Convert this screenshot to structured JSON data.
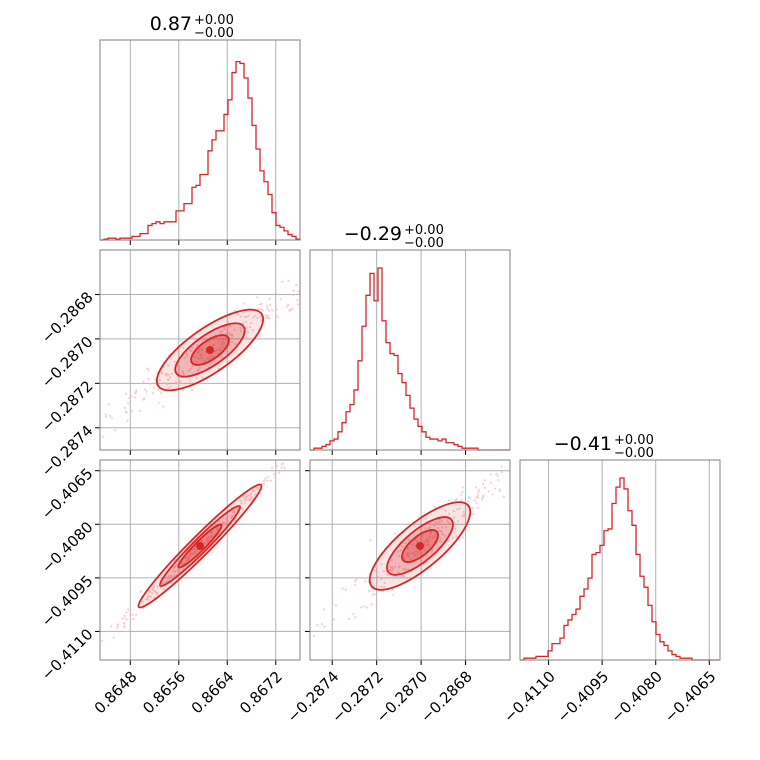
{
  "colors": {
    "accent": "#d62728",
    "fill_light": "#f7c1c2",
    "grid": "#b0b0b0",
    "frame": "#808080"
  },
  "chart_data": {
    "type": "corner",
    "parameters": [
      {
        "title": "0.87",
        "err_plus": "+0.00",
        "err_minus": "−0.00",
        "range": [
          0.8643,
          0.8676
        ],
        "ticks": [
          0.8648,
          0.8656,
          0.8664,
          0.8672
        ],
        "tick_labels": [
          "0.8648",
          "0.8656",
          "0.8664",
          "0.8672"
        ],
        "hist": [
          0,
          0.005,
          0.01,
          0.01,
          0.005,
          0.01,
          0.01,
          0.01,
          0.02,
          0.02,
          0.035,
          0.035,
          0.08,
          0.09,
          0.1,
          0.09,
          0.1,
          0.1,
          0.1,
          0.16,
          0.16,
          0.2,
          0.2,
          0.29,
          0.3,
          0.36,
          0.36,
          0.49,
          0.55,
          0.6,
          0.6,
          0.69,
          0.77,
          0.92,
          0.98,
          0.97,
          0.89,
          0.78,
          0.63,
          0.5,
          0.38,
          0.32,
          0.25,
          0.15,
          0.08,
          0.07,
          0.05,
          0.03,
          0.02,
          0.005
        ]
      },
      {
        "title": "−0.29",
        "err_plus": "+0.00",
        "err_minus": "−0.00",
        "range": [
          -0.2875,
          -0.2866
        ],
        "ticks": [
          -0.2874,
          -0.2872,
          -0.287,
          -0.2868
        ],
        "tick_labels": [
          "−0.2874",
          "−0.2872",
          "−0.2870",
          "−0.2868"
        ],
        "hist": [
          0,
          0.01,
          0.01,
          0.02,
          0.03,
          0.05,
          0.06,
          0.1,
          0.15,
          0.21,
          0.25,
          0.33,
          0.49,
          0.68,
          0.85,
          0.97,
          0.82,
          1.0,
          0.71,
          0.59,
          0.53,
          0.52,
          0.42,
          0.37,
          0.3,
          0.23,
          0.17,
          0.13,
          0.1,
          0.07,
          0.06,
          0.06,
          0.05,
          0.06,
          0.04,
          0.04,
          0.03,
          0.02,
          0.01,
          0.01,
          0.01,
          0.01,
          0,
          0,
          0,
          0,
          0,
          0,
          0,
          0
        ]
      },
      {
        "title": "−0.41",
        "err_plus": "+0.00",
        "err_minus": "−0.00",
        "range": [
          -0.4118,
          -0.4062
        ],
        "ticks": [
          -0.411,
          -0.4095,
          -0.408,
          -0.4065
        ],
        "tick_labels": [
          "−0.4110",
          "−0.4095",
          "−0.4080",
          "−0.4065"
        ],
        "hist": [
          0,
          0.01,
          0.01,
          0.01,
          0.02,
          0.02,
          0.02,
          0.05,
          0.09,
          0.09,
          0.12,
          0.19,
          0.22,
          0.25,
          0.28,
          0.35,
          0.39,
          0.45,
          0.58,
          0.59,
          0.63,
          0.71,
          0.72,
          0.86,
          0.95,
          1.0,
          0.94,
          0.82,
          0.74,
          0.58,
          0.46,
          0.4,
          0.3,
          0.21,
          0.14,
          0.1,
          0.08,
          0.05,
          0.03,
          0.02,
          0.01,
          0.01,
          0.01,
          0,
          0,
          0,
          0,
          0,
          0,
          0
        ]
      }
    ],
    "pairs": [
      {
        "x_param": 0,
        "y_param": 1,
        "correlation": 0.9
      },
      {
        "x_param": 0,
        "y_param": 2,
        "correlation": 0.998
      },
      {
        "x_param": 1,
        "y_param": 2,
        "correlation": 0.85
      }
    ],
    "grid": true
  }
}
